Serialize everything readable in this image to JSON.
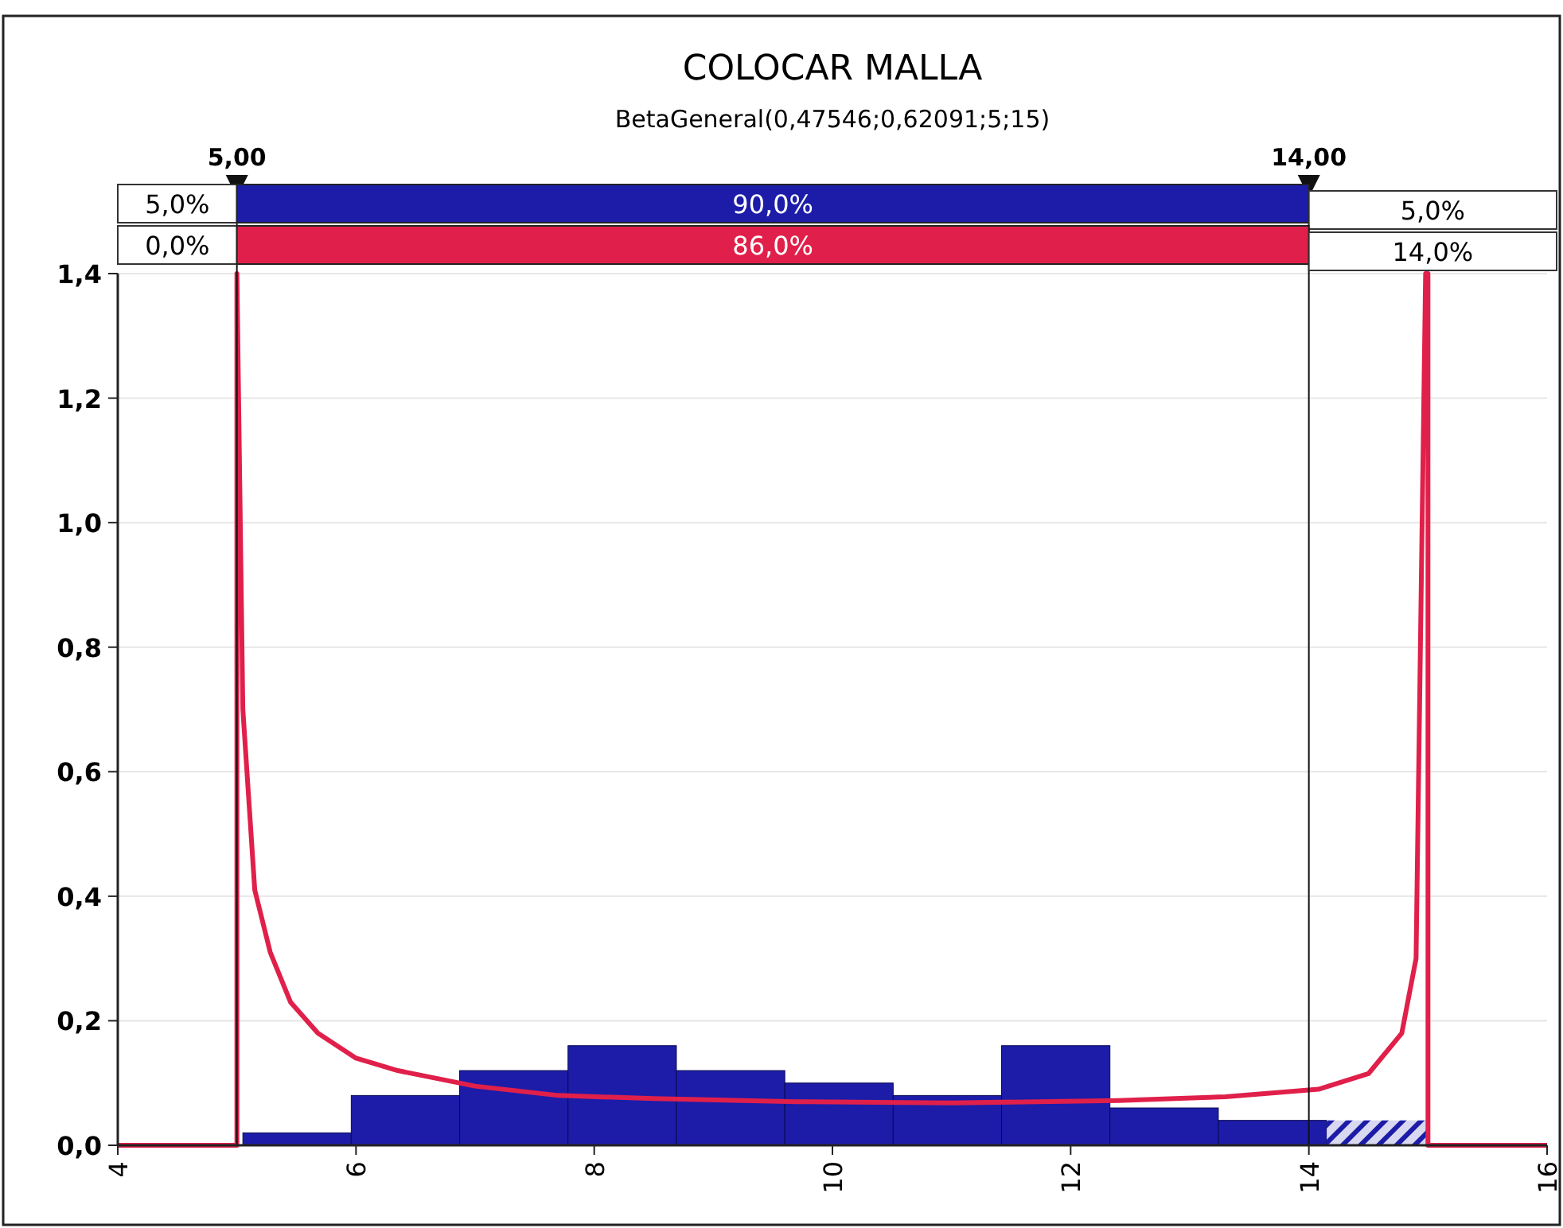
{
  "chart_data": {
    "type": "histogram",
    "title": "COLOCAR MALLA",
    "subtitle": "BetaGeneral(0,47546;0,62091;5;15)",
    "series": [
      {
        "color": "#1c1ca8",
        "bins": [
          5.05,
          5.96,
          6.87,
          7.78,
          8.69,
          9.6,
          10.51,
          11.42,
          12.33,
          13.24,
          14.15,
          15.0
        ],
        "values": [
          0.02,
          0.08,
          0.12,
          0.16,
          0.12,
          0.1,
          0.08,
          0.16,
          0.06,
          0.04,
          0.04
        ]
      },
      {
        "type": "line",
        "color": "#e0204a",
        "x": [
          4,
          5,
          5,
          5.05,
          5.15,
          5.28,
          5.45,
          5.68,
          6.0,
          6.35,
          7.0,
          7.7,
          8.5,
          9.7,
          11.0,
          12.4,
          13.3,
          14.08,
          14.5,
          14.78,
          14.9,
          14.98,
          15,
          15,
          16
        ],
        "values": [
          0,
          0,
          1.4,
          0.7,
          0.41,
          0.31,
          0.23,
          0.18,
          0.14,
          0.12,
          0.095,
          0.08,
          0.075,
          0.07,
          0.068,
          0.072,
          0.078,
          0.09,
          0.115,
          0.18,
          0.3,
          1.4,
          1.4,
          0,
          0
        ]
      }
    ],
    "xlim": [
      4,
      16
    ],
    "ylim": [
      0,
      1.4
    ],
    "xticks": [
      4,
      6,
      8,
      10,
      12,
      14,
      16
    ],
    "yticks": [
      {
        "value": 0,
        "label": "0,0"
      },
      {
        "value": 0.2,
        "label": "0,2"
      },
      {
        "value": 0.4,
        "label": "0,4"
      },
      {
        "value": 0.6,
        "label": "0,6"
      },
      {
        "value": 0.8,
        "label": "0,8"
      },
      {
        "value": 1.0,
        "label": "1,0"
      },
      {
        "value": 1.2,
        "label": "1,2"
      },
      {
        "value": 1.4,
        "label": "1,4"
      }
    ],
    "ref_lines": [
      {
        "axis": "x",
        "value": 5,
        "label": "5,00"
      },
      {
        "axis": "x",
        "value": 14,
        "label": "14,00"
      }
    ],
    "annotations": [
      "5,0%",
      "90,0%",
      "5,0%",
      "0,0%",
      "86,0%",
      "14,0%"
    ],
    "grid": "y"
  }
}
